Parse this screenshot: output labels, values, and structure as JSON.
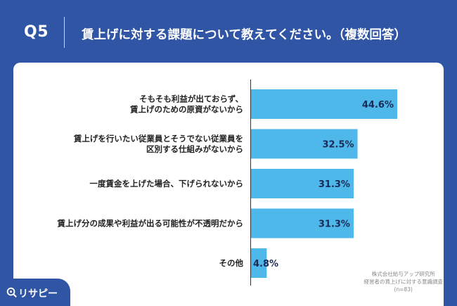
{
  "header": {
    "q_number": "Q5",
    "question": "賃上げに対する課題について教えてください。（複数回答）"
  },
  "chart_data": {
    "type": "bar",
    "orientation": "horizontal",
    "categories": [
      [
        "そもそも利益が出ておらず、",
        "賃上げのための原資がないから"
      ],
      [
        "賃上げを行いたい従業員とそうでない従業員を",
        "区別する仕組みがないから"
      ],
      [
        "一度賃金を上げた場合、下げられないから"
      ],
      [
        "賃上げ分の成果や利益が出る可能性が不透明だから"
      ],
      [
        "その他"
      ]
    ],
    "values": [
      44.6,
      32.5,
      31.3,
      31.3,
      4.8
    ],
    "value_labels": [
      "44.6%",
      "32.5%",
      "31.3%",
      "31.3%",
      "4.8%"
    ],
    "xlim": [
      0,
      60
    ],
    "grid": false,
    "bar_color": "#4fb8ea"
  },
  "source": {
    "line1": "株式会社給与アップ研究所",
    "line2": "経営者の賃上げに対する意識調査",
    "line3": "(n=83)"
  },
  "logo": {
    "text": "リサピー",
    "icon": "magnifier-icon"
  }
}
